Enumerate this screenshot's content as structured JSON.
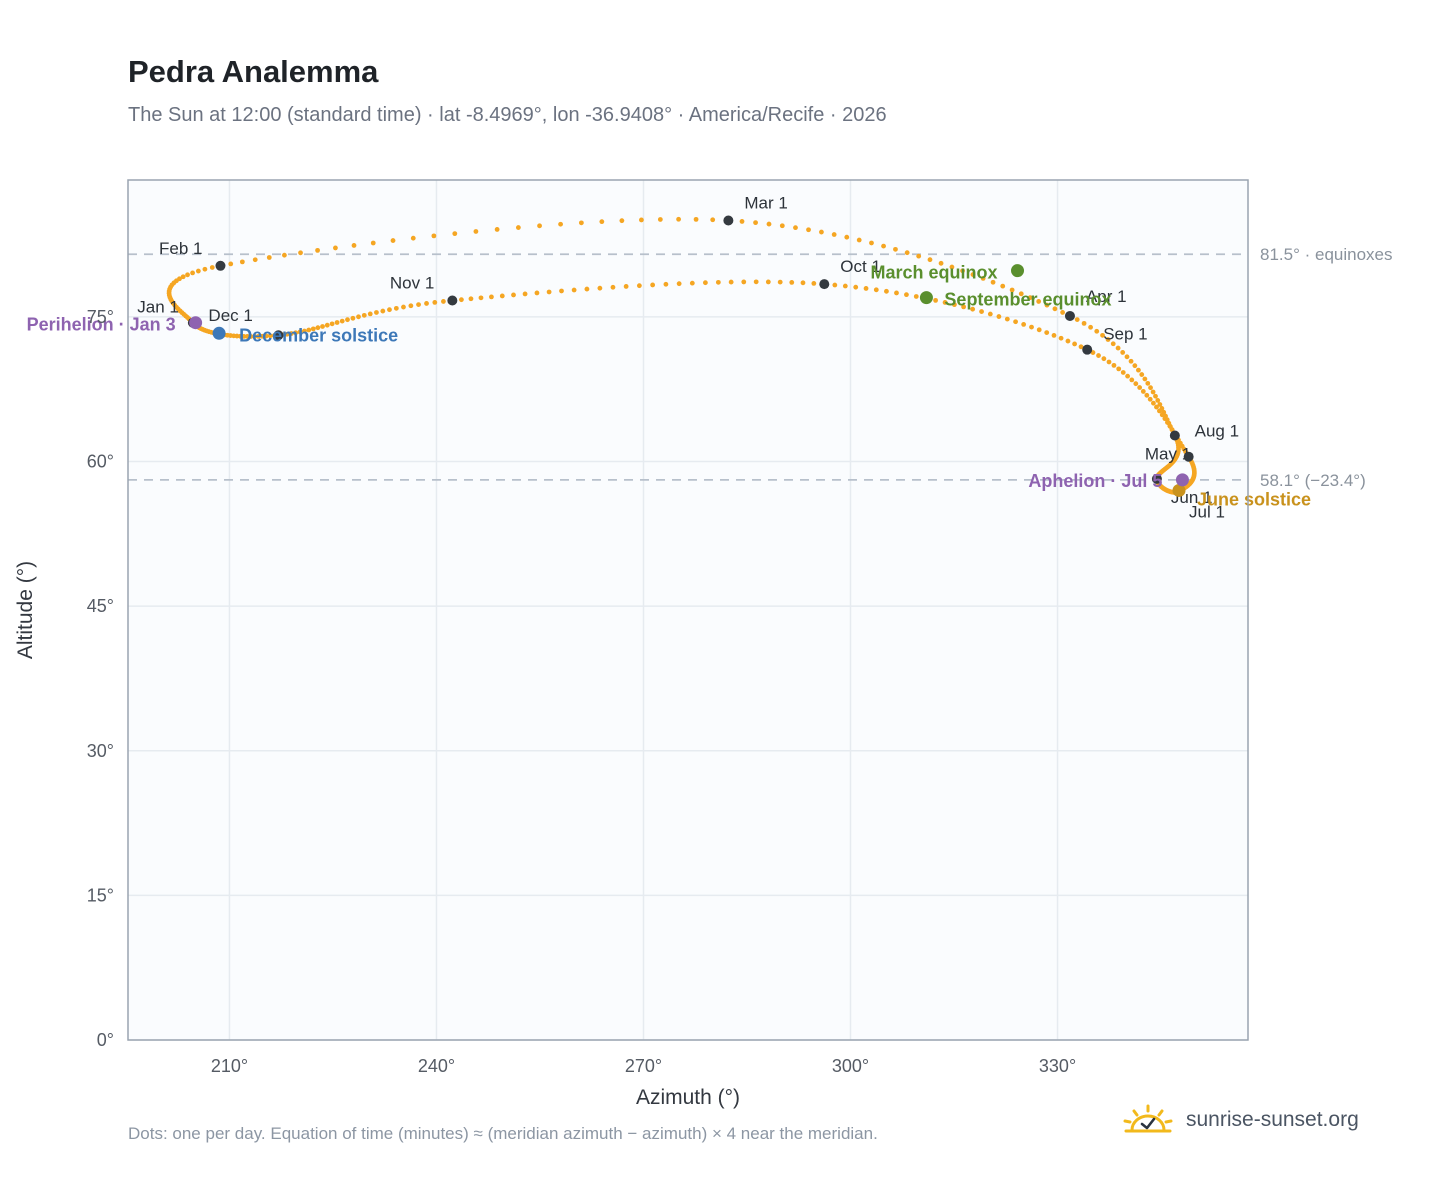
{
  "header": {
    "title": "Pedra Analemma",
    "subtitle": "The Sun at 12:00 (standard time) · lat -8.4969°, lon -36.9408° · America/Recife · 2026"
  },
  "footer": {
    "note": "Dots: one per day. Equation of time (minutes) ≈ (meridian azimuth − azimuth) × 4 near the meridian.",
    "brand": "sunrise-sunset.org",
    "brand_icon": "sun-check-icon"
  },
  "colors": {
    "path": "#f5a623",
    "month_marker": "#343a40",
    "equinox": "#5a8f2e",
    "june_solstice": "#c9921d",
    "december_solstice": "#3d78b8",
    "apsis": "#8e63b0",
    "reference_line": "#b7c0cb",
    "plot_background": "#fafcfe",
    "grid": "#e6ebf0",
    "frame": "#9aa4b0"
  },
  "chart_data": {
    "type": "scatter",
    "xlabel": "Azimuth (°)",
    "ylabel": "Altitude (°)",
    "xlim": [
      195.3,
      357.6
    ],
    "ylim": [
      0,
      89.2
    ],
    "x_ticks": [
      210,
      240,
      270,
      300,
      330
    ],
    "x_tick_labels": [
      "210°",
      "240°",
      "270°",
      "300°",
      "330°"
    ],
    "y_ticks": [
      0,
      15,
      30,
      45,
      60,
      75
    ],
    "y_tick_labels": [
      "0°",
      "15°",
      "30°",
      "45°",
      "60°",
      "75°"
    ],
    "grid": true,
    "points_note": "one dot per day",
    "month_points": [
      {
        "label": "Jan 1",
        "az": 204.7,
        "alt": 74.4
      },
      {
        "label": "Feb 1",
        "az": 208.7,
        "alt": 80.3
      },
      {
        "label": "Mar 1",
        "az": 282.3,
        "alt": 85.0
      },
      {
        "label": "Apr 1",
        "az": 331.8,
        "alt": 75.1
      },
      {
        "label": "May 1",
        "az": 347.0,
        "alt": 62.7
      },
      {
        "label": "Jun 1",
        "az": 344.4,
        "alt": 58.2
      },
      {
        "label": "Jul 1",
        "az": 347.6,
        "alt": 56.9
      },
      {
        "label": "Aug 1",
        "az": 349.0,
        "alt": 60.5
      },
      {
        "label": "Sep 1",
        "az": 334.3,
        "alt": 71.6
      },
      {
        "label": "Oct 1",
        "az": 296.2,
        "alt": 78.4
      },
      {
        "label": "Nov 1",
        "az": 242.3,
        "alt": 76.7
      },
      {
        "label": "Dec 1",
        "az": 217.1,
        "alt": 73.1
      }
    ],
    "events": [
      {
        "label": "March equinox",
        "az": 324.2,
        "alt": 79.8,
        "color_key": "equinox"
      },
      {
        "label": "September equinox",
        "az": 311.0,
        "alt": 77.0,
        "color_key": "equinox"
      },
      {
        "label": "June solstice",
        "az": 347.6,
        "alt": 57.0,
        "color_key": "june_solstice"
      },
      {
        "label": "December solstice",
        "az": 208.5,
        "alt": 73.3,
        "color_key": "december_solstice"
      },
      {
        "label": "Perihelion · Jan 3",
        "az": 205.1,
        "alt": 74.4,
        "color_key": "apsis"
      },
      {
        "label": "Aphelion · Jul 5",
        "az": 348.1,
        "alt": 58.1,
        "color_key": "apsis"
      }
    ],
    "reference_lines": [
      {
        "label": "81.5° · equinoxes",
        "alt": 81.5
      },
      {
        "label": "58.1° (−23.4°)",
        "alt": 58.1
      }
    ]
  }
}
